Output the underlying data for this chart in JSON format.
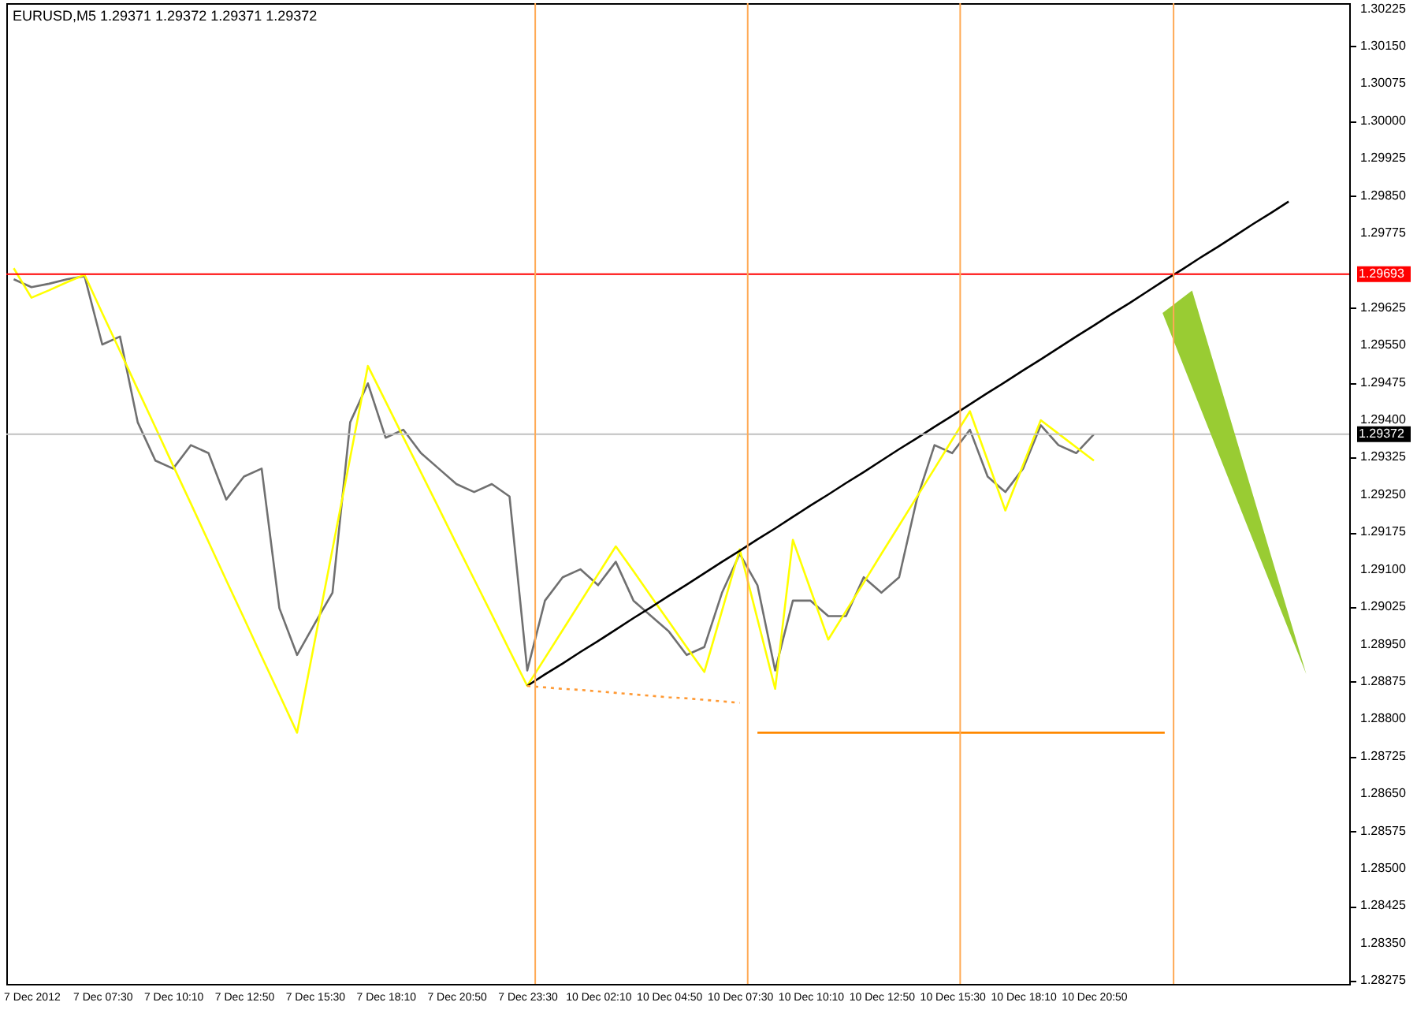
{
  "chart_data": {
    "type": "line",
    "title": "EURUSD,M5  1.29371 1.29372 1.29371 1.29372",
    "categories": [
      null,
      "7 Dec 2012",
      null,
      null,
      null,
      "7 Dec 07:30",
      null,
      null,
      null,
      "7 Dec 10:10",
      null,
      null,
      null,
      "7 Dec 12:50",
      null,
      null,
      null,
      "7 Dec 15:30",
      null,
      null,
      null,
      "7 Dec 18:10",
      null,
      null,
      null,
      "7 Dec 20:50",
      null,
      null,
      null,
      "7 Dec 23:30",
      null,
      null,
      null,
      "10 Dec 02:10",
      null,
      null,
      null,
      "10 Dec 04:50",
      null,
      null,
      null,
      "10 Dec 07:30",
      null,
      null,
      null,
      "10 Dec 10:10",
      null,
      null,
      null,
      "10 Dec 12:50",
      null,
      null,
      null,
      "10 Dec 15:30",
      null,
      null,
      null,
      "10 Dec 18:10",
      null,
      null,
      null,
      "10 Dec 20:50",
      null,
      null,
      null,
      null,
      null,
      null,
      null,
      null,
      null,
      null,
      null,
      null,
      null,
      null
    ],
    "ylim": [
      1.28269,
      1.30237
    ],
    "yticks": [
      1.28275,
      {
        "value": 1.2835,
        "label": "1.28350"
      },
      1.28425,
      {
        "value": 1.285,
        "label": "1.28500"
      },
      1.28575,
      {
        "value": 1.2865,
        "label": "1.28650"
      },
      1.28725,
      {
        "value": 1.288,
        "label": "1.28800"
      },
      1.28875,
      {
        "value": 1.2895,
        "label": "1.28950"
      },
      1.29025,
      {
        "value": 1.291,
        "label": "1.29100"
      },
      1.29175,
      {
        "value": 1.2925,
        "label": "1.29250"
      },
      1.29325,
      {
        "value": 1.294,
        "label": "1.29400"
      },
      1.29475,
      {
        "value": 1.2955,
        "label": "1.29550"
      },
      1.29625,
      1.29775,
      {
        "value": 1.2985,
        "label": "1.29850"
      },
      1.29925,
      {
        "value": 1.3,
        "label": "1.30000"
      },
      1.30075,
      {
        "value": 1.3015,
        "label": "1.30150"
      },
      1.30225
    ],
    "series": [
      {
        "color": "#707070",
        "values": [
          1.29683,
          1.29667,
          1.29674,
          1.29683,
          1.29689,
          1.29552,
          1.29568,
          1.29396,
          1.29319,
          1.29303,
          1.2935,
          1.29334,
          1.29241,
          1.29287,
          1.29303,
          1.29023,
          1.28929,
          1.28992,
          1.29054,
          1.29396,
          1.29474,
          1.29365,
          1.29381,
          1.29334,
          1.29303,
          1.29272,
          1.29256,
          1.29272,
          1.29247,
          1.28898,
          1.29038,
          1.29085,
          1.29101,
          1.29069,
          1.29116,
          1.29038,
          1.29007,
          1.28976,
          1.28929,
          1.28945,
          1.29054,
          1.29132,
          1.29069,
          1.28898,
          1.29038,
          1.29038,
          1.29007,
          1.29007,
          1.29085,
          1.29054,
          1.29085,
          1.29241,
          1.2935,
          1.29334,
          1.29381,
          1.29287,
          1.29256,
          1.29303,
          1.2939,
          1.2935,
          1.29334,
          1.29372,
          null,
          null,
          null,
          null,
          null,
          null,
          null,
          null,
          null,
          null,
          null,
          null,
          null,
          null
        ]
      },
      {
        "color": "#ffff00",
        "values": [
          1.29705,
          1.29646,
          1.29661,
          1.29677,
          1.29692,
          1.29615,
          1.29539,
          1.29462,
          1.29386,
          1.29309,
          1.29233,
          1.29156,
          1.29079,
          1.29003,
          1.28926,
          1.2885,
          1.28773,
          1.28957,
          1.29141,
          1.29325,
          1.29509,
          1.29438,
          1.29366,
          1.29295,
          1.29224,
          1.29152,
          1.29081,
          1.2901,
          1.28938,
          1.28867,
          1.28923,
          1.28979,
          1.29035,
          1.29091,
          1.29147,
          1.29097,
          1.29046,
          1.28996,
          1.28945,
          1.28895,
          1.29018,
          1.29141,
          1.29001,
          1.28861,
          1.2916,
          1.2906,
          1.2896,
          1.29017,
          1.29074,
          1.29132,
          1.29189,
          1.29246,
          1.29303,
          1.29361,
          1.29418,
          1.29319,
          1.29219,
          1.2931,
          1.294,
          1.29373,
          1.29346,
          1.29319,
          null,
          null,
          null,
          null,
          null,
          null,
          null,
          null,
          null,
          null,
          null,
          null,
          null,
          null
        ]
      },
      {
        "color": "#000000",
        "values": [
          null,
          null,
          null,
          null,
          null,
          null,
          null,
          null,
          null,
          null,
          null,
          null,
          null,
          null,
          null,
          null,
          null,
          null,
          null,
          null,
          null,
          null,
          null,
          null,
          null,
          null,
          null,
          null,
          null,
          1.28867,
          1.2889,
          1.28912,
          1.28935,
          1.28957,
          1.2898,
          1.29003,
          1.29025,
          1.29048,
          1.2907,
          1.29093,
          1.29116,
          1.29138,
          1.29161,
          1.29183,
          1.29206,
          1.29229,
          1.29251,
          1.29274,
          1.29296,
          1.29319,
          1.29342,
          1.29364,
          1.29387,
          1.29409,
          1.29432,
          1.29455,
          1.29477,
          1.295,
          1.29522,
          1.29545,
          1.29568,
          1.2959,
          1.29613,
          1.29635,
          1.29658,
          1.29681,
          1.29703,
          1.29726,
          1.29748,
          1.29771,
          1.29794,
          1.29816,
          1.29839,
          null,
          null,
          null
        ]
      },
      {
        "color": "#ff9933",
        "line_style": "dotted",
        "values": [
          null,
          null,
          null,
          null,
          null,
          null,
          null,
          null,
          null,
          null,
          null,
          null,
          null,
          null,
          null,
          null,
          null,
          null,
          null,
          null,
          null,
          null,
          null,
          null,
          null,
          null,
          null,
          null,
          null,
          1.28867,
          1.28864,
          1.28861,
          1.28859,
          1.28856,
          1.28853,
          1.2885,
          1.28847,
          1.28844,
          1.28842,
          1.28839,
          1.28836,
          1.28833,
          null,
          null,
          null,
          null,
          null,
          null,
          null,
          null,
          null,
          null,
          null,
          null,
          null,
          null,
          null,
          null,
          null,
          null,
          null,
          null,
          null,
          null,
          null,
          null,
          null,
          null,
          null,
          null,
          null,
          null,
          null,
          null,
          null,
          null
        ]
      },
      {
        "color": "#ff8800",
        "values": [
          null,
          null,
          null,
          null,
          null,
          null,
          null,
          null,
          null,
          null,
          null,
          null,
          null,
          null,
          null,
          null,
          null,
          null,
          null,
          null,
          null,
          null,
          null,
          null,
          null,
          null,
          null,
          null,
          null,
          null,
          null,
          null,
          null,
          null,
          null,
          null,
          null,
          null,
          null,
          null,
          null,
          null,
          1.28773,
          1.28773,
          1.28773,
          1.28773,
          1.28773,
          1.28773,
          1.28773,
          1.28773,
          1.28773,
          1.28773,
          1.28773,
          1.28773,
          1.28773,
          1.28773,
          1.28773,
          1.28773,
          1.28773,
          1.28773,
          1.28773,
          1.28773,
          1.28773,
          1.28773,
          1.28773,
          1.28773,
          null,
          null,
          null,
          null,
          null,
          null,
          null,
          null,
          null,
          null
        ]
      }
    ],
    "ref_lines": [
      {
        "axis": "y",
        "value": 1.29693,
        "label": "1.29693",
        "color": "#ff0000"
      },
      {
        "axis": "y",
        "value": 1.29372,
        "label": "1.29372",
        "color": "#c0c0c0"
      }
    ]
  }
}
